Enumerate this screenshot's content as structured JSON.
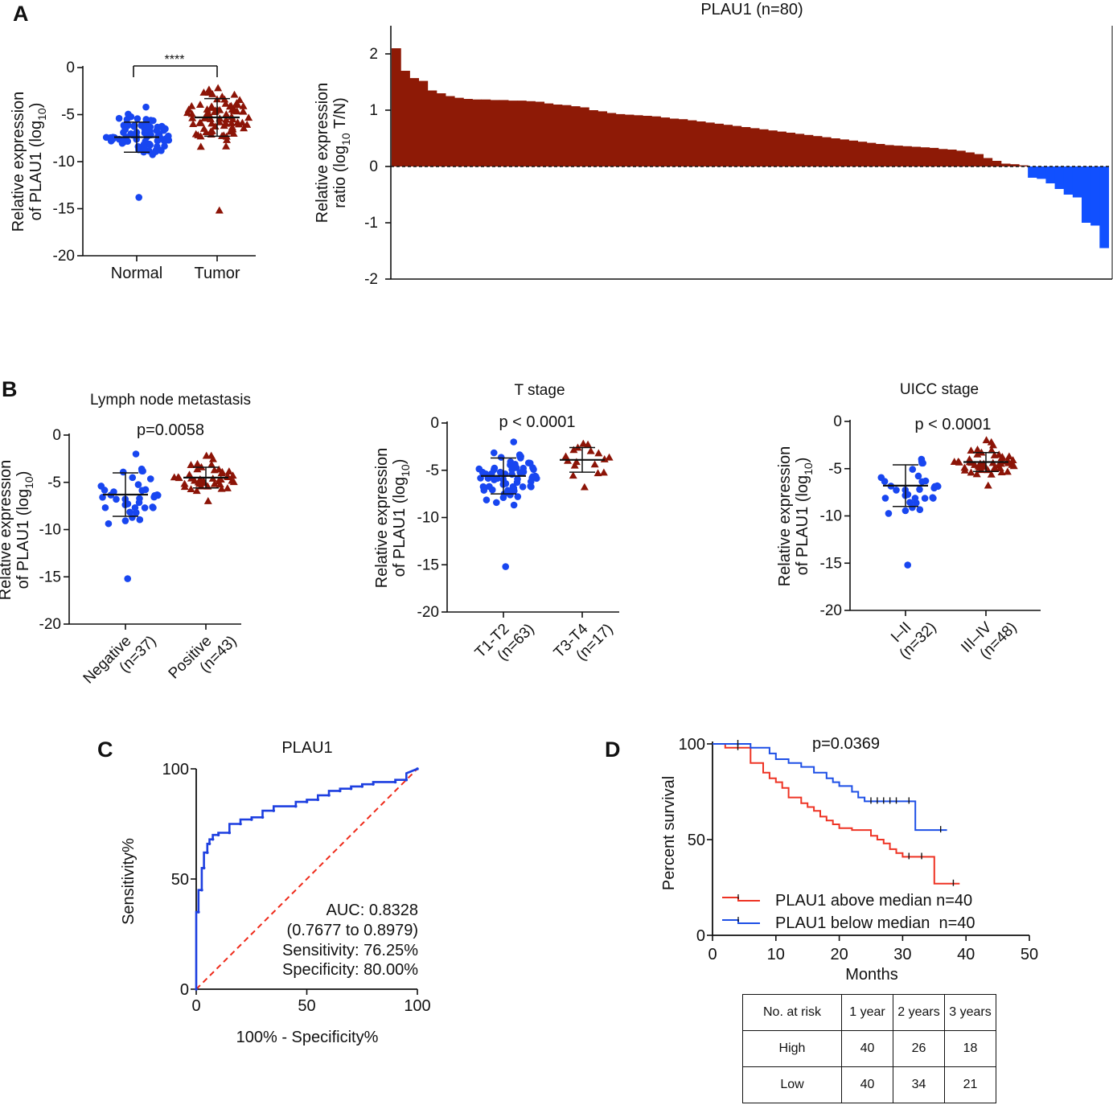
{
  "panels": {
    "a": "A",
    "b": "B",
    "c": "C",
    "d": "D"
  },
  "colors": {
    "normal": "#1846f0",
    "tumor": "#8c1407",
    "positive_bar": "#8e1a06",
    "negative_bar": "#1150ff",
    "roc": "#1d3fe0",
    "reference": "#ee2a1a",
    "high": "#ee3324",
    "low": "#1d4fe6"
  },
  "chart_data": [
    {
      "id": "A-left",
      "type": "scatter",
      "ylabel_line1": "Relative expression",
      "ylabel_line2": "of PLAU1 (log",
      "ylabel_sub": "10",
      "ylabel_close": ")",
      "ylim": [
        -20,
        0
      ],
      "yticks": [
        0,
        -5,
        -10,
        -15,
        -20
      ],
      "categories": [
        "Normal",
        "Tumor"
      ],
      "significance": "****",
      "groups": [
        {
          "name": "Normal",
          "marker": "circle",
          "mean": -7.4,
          "sd": 1.6,
          "min": -13.8,
          "max": -4.2,
          "n": 80
        },
        {
          "name": "Tumor",
          "marker": "triangle",
          "mean": -5.3,
          "sd": 2.0,
          "min": -15.2,
          "max": -2.2,
          "n": 80
        }
      ]
    },
    {
      "id": "A-right",
      "type": "bar",
      "title": "PLAU1 (n=80)",
      "ylabel_line1": "Relative expression",
      "ylabel_line2": "ratio (log",
      "ylabel_sub": "10",
      "ylabel_close": " T/N)",
      "ylim": [
        -2,
        2.5
      ],
      "yticks": [
        2,
        1,
        0,
        -1,
        -2
      ],
      "values": [
        2.1,
        1.7,
        1.57,
        1.52,
        1.35,
        1.3,
        1.25,
        1.22,
        1.2,
        1.19,
        1.19,
        1.18,
        1.18,
        1.17,
        1.17,
        1.16,
        1.15,
        1.12,
        1.1,
        1.09,
        1.07,
        1.05,
        1.0,
        0.98,
        0.95,
        0.93,
        0.92,
        0.91,
        0.9,
        0.89,
        0.87,
        0.85,
        0.84,
        0.82,
        0.8,
        0.78,
        0.76,
        0.74,
        0.72,
        0.7,
        0.68,
        0.66,
        0.64,
        0.62,
        0.6,
        0.58,
        0.56,
        0.54,
        0.52,
        0.5,
        0.48,
        0.46,
        0.44,
        0.42,
        0.4,
        0.38,
        0.37,
        0.36,
        0.35,
        0.34,
        0.33,
        0.31,
        0.3,
        0.28,
        0.25,
        0.22,
        0.15,
        0.1,
        0.05,
        0.04,
        0.02,
        -0.2,
        -0.22,
        -0.3,
        -0.4,
        -0.5,
        -0.55,
        -1.0,
        -1.05,
        -1.45
      ]
    },
    {
      "id": "B-1",
      "type": "scatter",
      "title": "Lymph node metastasis",
      "pvalue": "p=0.0058",
      "ylabel_line1": "Relative expression",
      "ylabel_line2": "of PLAU1 (log",
      "ylabel_sub": "10",
      "ylabel_close": ")",
      "ylim": [
        -20,
        0
      ],
      "yticks": [
        0,
        -5,
        -10,
        -15,
        -20
      ],
      "categories": [
        "Negative\n(n=37)",
        "Positive\n(n=43)"
      ],
      "groups": [
        {
          "name": "Negative",
          "marker": "circle",
          "mean": -6.3,
          "sd": 2.3,
          "min": -15.2,
          "max": -2.0,
          "n": 37
        },
        {
          "name": "Positive",
          "marker": "triangle",
          "mean": -4.5,
          "sd": 1.1,
          "min": -7.0,
          "max": -2.2,
          "n": 43
        }
      ]
    },
    {
      "id": "B-2",
      "type": "scatter",
      "title": "T stage",
      "pvalue": "p < 0.0001",
      "ylabel_line1": "Relative expression",
      "ylabel_line2": "of PLAU1 (log",
      "ylabel_sub": "10",
      "ylabel_close": ")",
      "ylim": [
        -20,
        0
      ],
      "yticks": [
        0,
        -5,
        -10,
        -15,
        -20
      ],
      "categories": [
        "T1-T2\n(n=63)",
        "T3-T4\n(n=17)"
      ],
      "groups": [
        {
          "name": "T1-T2",
          "marker": "circle",
          "mean": -5.6,
          "sd": 1.9,
          "min": -15.2,
          "max": -2.0,
          "n": 63
        },
        {
          "name": "T3-T4",
          "marker": "triangle",
          "mean": -3.9,
          "sd": 1.3,
          "min": -6.8,
          "max": -2.2,
          "n": 17
        }
      ]
    },
    {
      "id": "B-3",
      "type": "scatter",
      "title": "UICC stage",
      "pvalue": "p < 0.0001",
      "ylabel_line1": "Relative expression",
      "ylabel_line2": "of PLAU1 (log",
      "ylabel_sub": "10",
      "ylabel_close": ")",
      "ylim": [
        -20,
        0
      ],
      "yticks": [
        0,
        -5,
        -10,
        -15,
        -20
      ],
      "categories": [
        "I–II\n(n=32)",
        "III–IV\n(n=48)"
      ],
      "groups": [
        {
          "name": "I–II",
          "marker": "circle",
          "mean": -6.8,
          "sd": 2.2,
          "min": -15.2,
          "max": -4.0,
          "n": 32
        },
        {
          "name": "III–IV",
          "marker": "triangle",
          "mean": -4.3,
          "sd": 1.0,
          "min": -6.8,
          "max": -2.0,
          "n": 48
        }
      ]
    },
    {
      "id": "C",
      "type": "line",
      "title": "PLAU1",
      "xlabel": "100% - Specificity%",
      "ylabel": "Sensitivity%",
      "xlim": [
        0,
        100
      ],
      "ylim": [
        0,
        100
      ],
      "xticks": [
        0,
        50,
        100
      ],
      "yticks": [
        0,
        50,
        100
      ],
      "annotations": [
        "AUC: 0.8328",
        "(0.7677 to 0.8979)",
        "Sensitivity: 76.25%",
        "Specificity: 80.00%"
      ],
      "roc": {
        "x": [
          0,
          0,
          1,
          1,
          2.5,
          2.5,
          3.5,
          3.5,
          5,
          5,
          6,
          6,
          7.5,
          7.5,
          10,
          10,
          15,
          15,
          20,
          20,
          25,
          25,
          30,
          30,
          35,
          35,
          45,
          45,
          50,
          50,
          55,
          55,
          60,
          60,
          65,
          65,
          70,
          70,
          75,
          75,
          80,
          80,
          90,
          90,
          95,
          95,
          100
        ],
        "y": [
          0,
          35,
          35,
          45,
          45,
          55,
          55,
          62,
          62,
          66,
          66,
          68,
          68,
          70,
          70,
          71,
          71,
          75,
          75,
          77,
          77,
          78,
          78,
          81,
          81,
          83,
          83,
          85,
          85,
          86,
          86,
          88,
          88,
          90,
          90,
          91,
          91,
          92,
          92,
          93,
          93,
          94,
          94,
          95,
          95,
          98,
          100
        ]
      }
    },
    {
      "id": "D",
      "type": "line",
      "pvalue": "p=0.0369",
      "xlabel": "Months",
      "ylabel": "Percent survival",
      "xlim": [
        0,
        50
      ],
      "ylim": [
        0,
        100
      ],
      "xticks": [
        0,
        10,
        20,
        30,
        40,
        50
      ],
      "yticks": [
        0,
        50,
        100
      ],
      "series": [
        {
          "name": "PLAU1 above median n=40",
          "x": [
            0,
            2,
            6,
            8,
            9,
            10,
            11,
            12,
            14,
            15,
            16,
            17,
            18,
            19,
            20,
            22,
            24,
            25,
            26,
            27,
            28,
            29,
            30,
            35,
            39
          ],
          "y": [
            100,
            98,
            90,
            85,
            82,
            80,
            77,
            72,
            69,
            67,
            65,
            62,
            60,
            58,
            56,
            55,
            55,
            52,
            50,
            48,
            45,
            43,
            41,
            27,
            27
          ],
          "censored": [
            {
              "x": 4,
              "y": 98
            },
            {
              "x": 31,
              "y": 41
            },
            {
              "x": 33,
              "y": 41
            },
            {
              "x": 38,
              "y": 27
            }
          ]
        },
        {
          "name": "PLAU1 below median  n=40",
          "x": [
            0,
            6,
            9,
            10,
            12,
            14,
            16,
            18,
            19,
            20,
            22,
            23,
            24,
            32,
            37
          ],
          "y": [
            100,
            98,
            95,
            92,
            90,
            88,
            85,
            82,
            80,
            78,
            75,
            72,
            70,
            55,
            55
          ],
          "censored": [
            {
              "x": 4,
              "y": 100
            },
            {
              "x": 25,
              "y": 70
            },
            {
              "x": 26,
              "y": 70
            },
            {
              "x": 27,
              "y": 70
            },
            {
              "x": 28,
              "y": 70
            },
            {
              "x": 29,
              "y": 70
            },
            {
              "x": 31,
              "y": 70
            },
            {
              "x": 36,
              "y": 55
            }
          ]
        }
      ]
    }
  ],
  "risk_table": {
    "headers": [
      "No. at risk",
      "1 year",
      "2 years",
      "3 years"
    ],
    "rows": [
      {
        "label": "High",
        "values": [
          "40",
          "26",
          "18"
        ]
      },
      {
        "label": "Low",
        "values": [
          "40",
          "34",
          "21"
        ]
      }
    ]
  }
}
